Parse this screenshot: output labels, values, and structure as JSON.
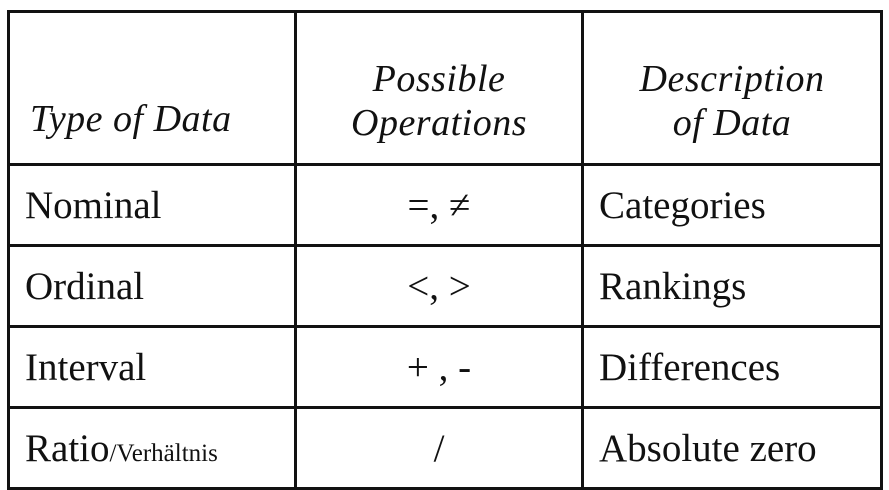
{
  "headers": {
    "type": "Type of Data",
    "operations": [
      "Possible",
      "Operations"
    ],
    "description": [
      "Description",
      "of Data"
    ]
  },
  "rows": [
    {
      "type": "Nominal",
      "type_suffix": "",
      "operations": "=, ≠",
      "description": "Categories"
    },
    {
      "type": "Ordinal",
      "type_suffix": "",
      "operations": "<, >",
      "description": "Rankings"
    },
    {
      "type": "Interval",
      "type_suffix": "",
      "operations": "+ , -",
      "description": "Differences"
    },
    {
      "type": "Ratio",
      "type_suffix": "/Verhältnis",
      "operations": "/",
      "description": "Absolute zero"
    }
  ]
}
